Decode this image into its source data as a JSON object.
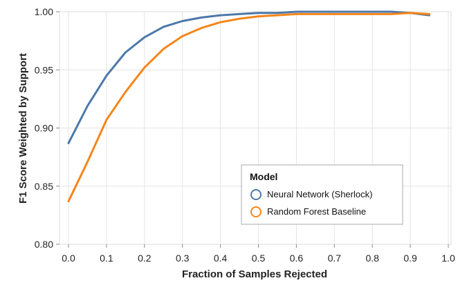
{
  "chart_data": {
    "type": "line",
    "xlabel": "Fraction of Samples Rejected",
    "ylabel": "F1 Score Weighted by Support",
    "xlim": [
      0.0,
      1.0
    ],
    "ylim": [
      0.8,
      1.0
    ],
    "x_ticks": [
      "0.0",
      "0.1",
      "0.2",
      "0.3",
      "0.4",
      "0.5",
      "0.6",
      "0.7",
      "0.8",
      "0.9",
      "1.0"
    ],
    "y_ticks": [
      "0.80",
      "0.85",
      "0.90",
      "0.95",
      "1.00"
    ],
    "grid": true,
    "legend": {
      "title": "Model",
      "placement": "bottom-right"
    },
    "x": [
      0.0,
      0.05,
      0.1,
      0.15,
      0.2,
      0.25,
      0.3,
      0.35,
      0.4,
      0.45,
      0.5,
      0.55,
      0.6,
      0.65,
      0.7,
      0.75,
      0.8,
      0.85,
      0.9,
      0.95
    ],
    "series": [
      {
        "name": "Neural Network (Sherlock)",
        "color": "#4c78a8",
        "values": [
          0.887,
          0.919,
          0.945,
          0.965,
          0.978,
          0.987,
          0.992,
          0.995,
          0.997,
          0.998,
          0.999,
          0.999,
          1.0,
          1.0,
          1.0,
          1.0,
          1.0,
          1.0,
          0.999,
          0.997
        ]
      },
      {
        "name": "Random Forest Baseline",
        "color": "#f58518",
        "values": [
          0.837,
          0.871,
          0.907,
          0.931,
          0.952,
          0.968,
          0.979,
          0.986,
          0.991,
          0.994,
          0.996,
          0.997,
          0.998,
          0.998,
          0.998,
          0.998,
          0.998,
          0.998,
          0.999,
          0.998
        ]
      }
    ]
  }
}
